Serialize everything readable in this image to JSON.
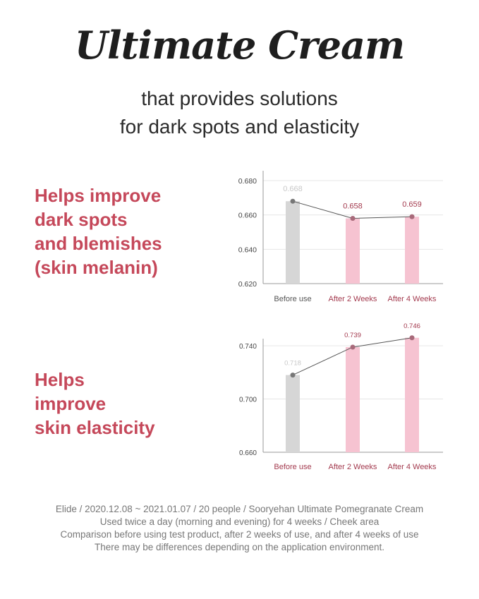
{
  "title": "Ultimate Cream",
  "subtitle": [
    "that provides solutions",
    "for dark spots and elasticity"
  ],
  "sections": [
    {
      "heading": [
        "Helps improve",
        "dark spots",
        "and blemishes",
        "(skin melanin)"
      ]
    },
    {
      "heading": [
        "Helps",
        "improve",
        "skin elasticity"
      ]
    }
  ],
  "colors": {
    "accent": "#c5485a",
    "label_dark_red": "#a33a4e",
    "bar_before": "#d6d6d6",
    "bar_after": "#f6c3d1",
    "line": "#555555"
  },
  "chart_data": [
    {
      "type": "bar",
      "categories": [
        "Before use",
        "After 2 Weeks",
        "After 4 Weeks"
      ],
      "values": [
        0.668,
        0.658,
        0.659
      ],
      "data_labels": [
        "0.668",
        "0.658",
        "0.659"
      ],
      "yticks": [
        "0.680",
        "0.660",
        "0.640",
        "0.620"
      ],
      "ylim": [
        0.62,
        0.68
      ],
      "overlay_line": true,
      "grid": true
    },
    {
      "type": "bar",
      "categories": [
        "Before use",
        "After 2 Weeks",
        "After 4 Weeks"
      ],
      "values": [
        0.718,
        0.739,
        0.746
      ],
      "data_labels": [
        "0.718",
        "0.739",
        "0.746"
      ],
      "yticks": [
        "0.740",
        "0.700",
        "0.660"
      ],
      "ylim": [
        0.66,
        0.748
      ],
      "overlay_line": true,
      "grid": true
    }
  ],
  "footnote": [
    "Elide / 2020.12.08 ~ 2021.01.07 / 20 people / Sooryehan Ultimate Pomegranate Cream",
    "Used twice a day (morning and evening) for 4 weeks / Cheek area",
    "Comparison before using test product, after 2 weeks of use, and after 4 weeks of use",
    "There may be differences depending on the application environment."
  ]
}
